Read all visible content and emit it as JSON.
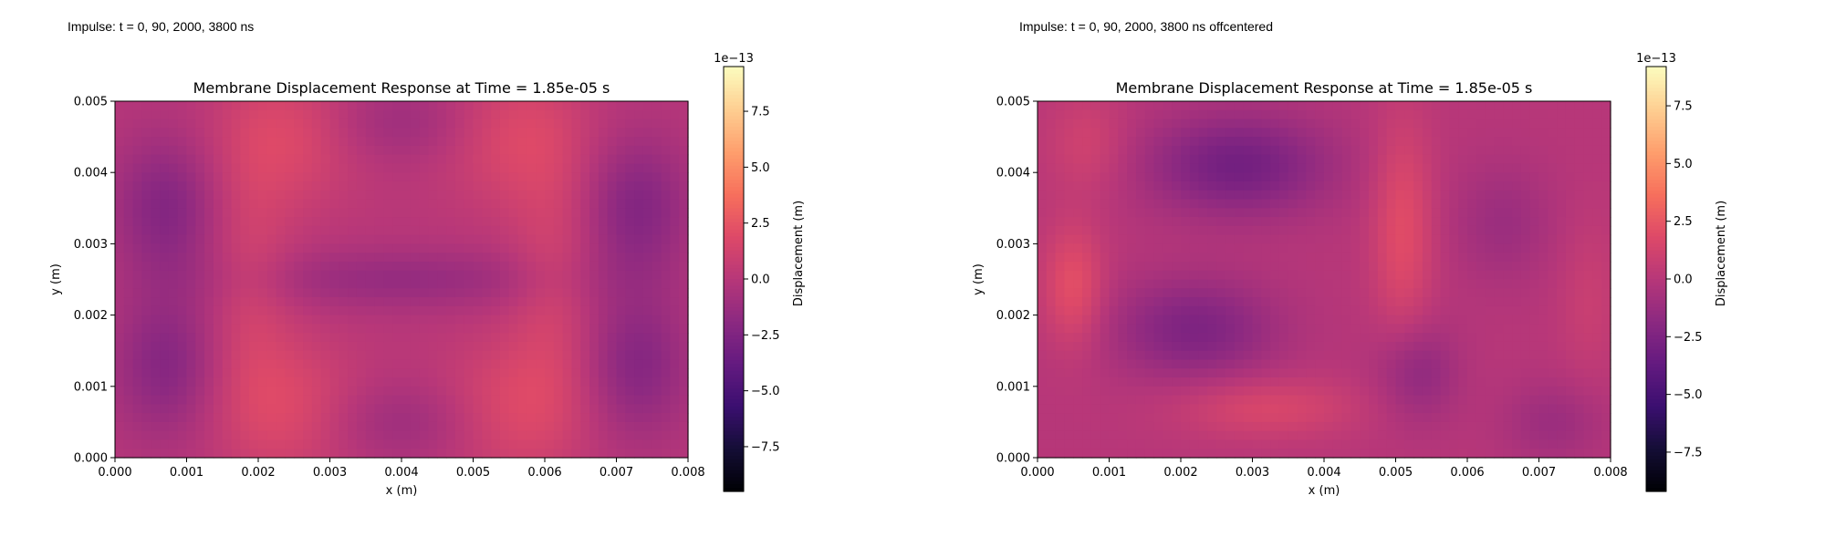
{
  "captions": [
    "Impulse: t = 0, 90, 2000, 3800 ns",
    "Impulse: t = 0, 90, 2000, 3800 ns offcentered"
  ],
  "chart_data": [
    {
      "type": "heatmap",
      "title": "Membrane Displacement Response at Time = 1.85e-05 s",
      "xlabel": "x (m)",
      "ylabel": "y (m)",
      "xlim": [
        0,
        0.008
      ],
      "ylim": [
        0,
        0.005
      ],
      "x_ticks": [
        "0.000",
        "0.001",
        "0.002",
        "0.003",
        "0.004",
        "0.005",
        "0.006",
        "0.007",
        "0.008"
      ],
      "y_ticks": [
        "0.000",
        "0.001",
        "0.002",
        "0.003",
        "0.004",
        "0.005"
      ],
      "colormap": "magma",
      "colorbar": {
        "label": "Displacement (m)",
        "offset_text": "1e−13",
        "range": [
          -9.5,
          9.5
        ],
        "ticks": [
          -7.5,
          -5.0,
          -2.5,
          0.0,
          2.5,
          5.0,
          7.5
        ],
        "tick_labels": [
          "−7.5",
          "−5.0",
          "−2.5",
          "0.0",
          "2.5",
          "5.0",
          "7.5"
        ]
      },
      "field_features": [
        {
          "x": 0.0024,
          "y": 0.0045,
          "v": 1.8,
          "sx": 0.0007,
          "sy": 0.0007
        },
        {
          "x": 0.0056,
          "y": 0.0045,
          "v": 1.8,
          "sx": 0.0007,
          "sy": 0.0007
        },
        {
          "x": 0.0024,
          "y": 0.0007,
          "v": 1.8,
          "sx": 0.0007,
          "sy": 0.0007
        },
        {
          "x": 0.0056,
          "y": 0.0007,
          "v": 1.8,
          "sx": 0.0007,
          "sy": 0.0007
        },
        {
          "x": 0.0019,
          "y": 0.0025,
          "v": 1.2,
          "sx": 0.0004,
          "sy": 0.0012
        },
        {
          "x": 0.0061,
          "y": 0.0025,
          "v": 1.2,
          "sx": 0.0004,
          "sy": 0.0012
        },
        {
          "x": 0.0007,
          "y": 0.0035,
          "v": -2.3,
          "sx": 0.0005,
          "sy": 0.0007
        },
        {
          "x": 0.0073,
          "y": 0.0035,
          "v": -2.3,
          "sx": 0.0005,
          "sy": 0.0007
        },
        {
          "x": 0.0007,
          "y": 0.0013,
          "v": -2.2,
          "sx": 0.0005,
          "sy": 0.0007
        },
        {
          "x": 0.0073,
          "y": 0.0013,
          "v": -2.2,
          "sx": 0.0005,
          "sy": 0.0007
        },
        {
          "x": 0.004,
          "y": 0.0025,
          "v": -1.5,
          "sx": 0.0016,
          "sy": 0.0003
        },
        {
          "x": 0.004,
          "y": 0.0047,
          "v": -1.2,
          "sx": 0.0008,
          "sy": 0.0004
        },
        {
          "x": 0.004,
          "y": 0.0005,
          "v": -1.2,
          "sx": 0.0008,
          "sy": 0.0004
        }
      ]
    },
    {
      "type": "heatmap",
      "title": "Membrane Displacement Response at Time = 1.85e-05 s",
      "xlabel": "x (m)",
      "ylabel": "y (m)",
      "xlim": [
        0,
        0.008
      ],
      "ylim": [
        0,
        0.005
      ],
      "x_ticks": [
        "0.000",
        "0.001",
        "0.002",
        "0.003",
        "0.004",
        "0.005",
        "0.006",
        "0.007",
        "0.008"
      ],
      "y_ticks": [
        "0.000",
        "0.001",
        "0.002",
        "0.003",
        "0.004",
        "0.005"
      ],
      "colormap": "magma",
      "colorbar": {
        "label": "Displacement (m)",
        "offset_text": "1e−13",
        "range": [
          -9.2,
          9.2
        ],
        "ticks": [
          -7.5,
          -5.0,
          -2.5,
          0.0,
          2.5,
          5.0,
          7.5
        ],
        "tick_labels": [
          "−7.5",
          "−5.0",
          "−2.5",
          "0.0",
          "2.5",
          "5.0",
          "7.5"
        ]
      },
      "field_features": [
        {
          "x": 0.0028,
          "y": 0.0041,
          "v": -3.0,
          "sx": 0.0009,
          "sy": 0.0005
        },
        {
          "x": 0.0022,
          "y": 0.0018,
          "v": -2.5,
          "sx": 0.0008,
          "sy": 0.0005
        },
        {
          "x": 0.0005,
          "y": 0.0024,
          "v": 2.2,
          "sx": 0.0003,
          "sy": 0.0006
        },
        {
          "x": 0.0051,
          "y": 0.0032,
          "v": 2.0,
          "sx": 0.0003,
          "sy": 0.0011
        },
        {
          "x": 0.0032,
          "y": 0.0007,
          "v": 1.6,
          "sx": 0.0009,
          "sy": 0.0003
        },
        {
          "x": 0.0053,
          "y": 0.0012,
          "v": -1.8,
          "sx": 0.0004,
          "sy": 0.0005
        },
        {
          "x": 0.0065,
          "y": 0.0033,
          "v": -1.2,
          "sx": 0.0005,
          "sy": 0.0006
        },
        {
          "x": 0.0072,
          "y": 0.0005,
          "v": -1.2,
          "sx": 0.0005,
          "sy": 0.0004
        },
        {
          "x": 0.0007,
          "y": 0.0044,
          "v": 1.2,
          "sx": 0.0004,
          "sy": 0.0005
        },
        {
          "x": 0.0077,
          "y": 0.0022,
          "v": 0.8,
          "sx": 0.0003,
          "sy": 0.0008
        }
      ]
    }
  ]
}
